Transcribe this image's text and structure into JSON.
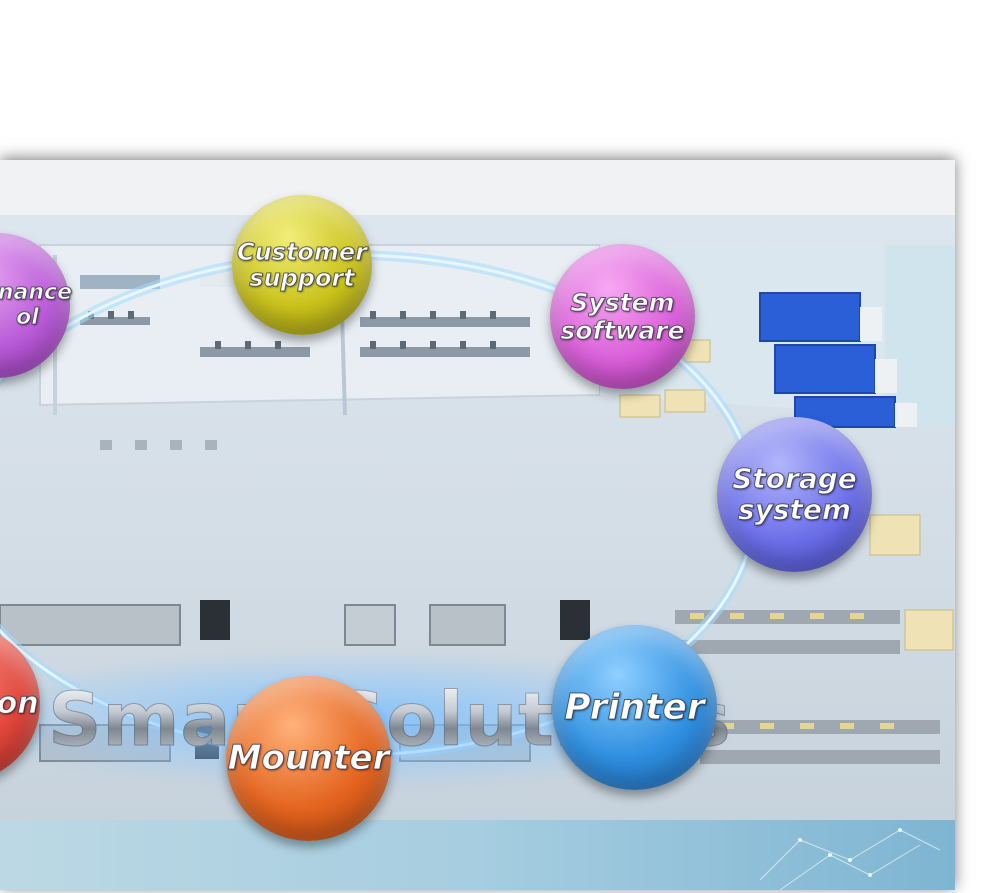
{
  "hero": {
    "title": "l Smart Solutions"
  },
  "bubbles": {
    "maintenance": {
      "label": "enance\nol",
      "color": "#b85ad6"
    },
    "customer_support": {
      "label": "Customer\nsupport",
      "color": "#c9c21b"
    },
    "system_software": {
      "label": "System\nsoftware",
      "color": "#d95fd8"
    },
    "storage_system": {
      "label": "Storage\nsystem",
      "color": "#6b6fe8"
    },
    "printer": {
      "label": "Printer",
      "color": "#2f8fe0"
    },
    "mounter": {
      "label": "Mounter",
      "color": "#e4641f"
    },
    "inspection": {
      "label": "ion",
      "color": "#e0463c"
    }
  },
  "colors": {
    "ring": "#9fd8ff",
    "floor": "#d6dee6",
    "truck_blue": "#2a5fd8"
  }
}
